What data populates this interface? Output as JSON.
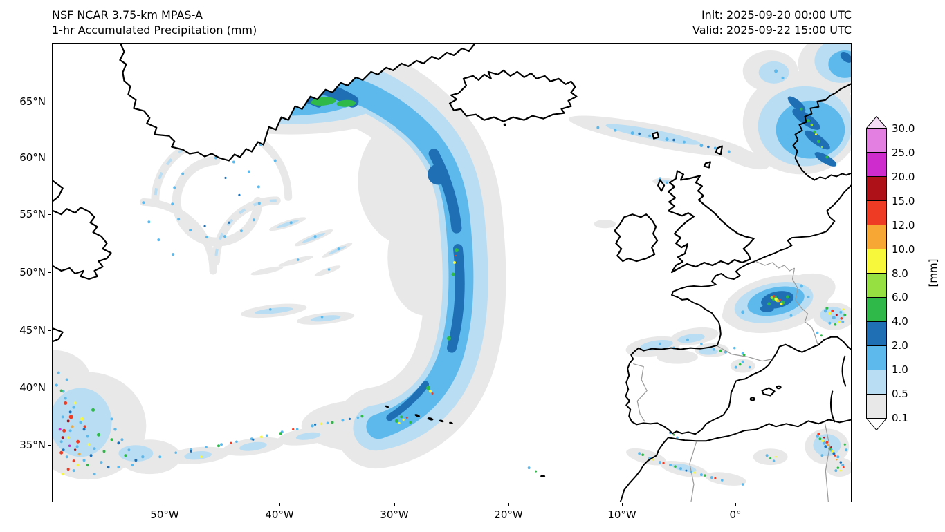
{
  "header": {
    "title_line1": "NSF NCAR 3.75-km MPAS-A",
    "title_line2": "1-hr Accumulated Precipitation (mm)",
    "init_time": "Init: 2025-09-20 00:00 UTC",
    "valid_time": "Valid: 2025-09-22 15:00 UTC"
  },
  "map": {
    "y_tick_labels": [
      "65°N",
      "60°N",
      "55°N",
      "50°N",
      "45°N",
      "40°N",
      "35°N"
    ],
    "x_tick_labels": [
      "50°W",
      "40°W",
      "30°W",
      "20°W",
      "10°W",
      "0°"
    ]
  },
  "colorbar": {
    "unit_label": "[mm]",
    "tick_labels_top_to_bottom": [
      "30.0",
      "25.0",
      "20.0",
      "15.0",
      "12.0",
      "10.0",
      "8.0",
      "6.0",
      "4.0",
      "2.0",
      "1.0",
      "0.5",
      "0.1"
    ],
    "segment_colors_top_to_bottom": [
      "#e47fe2",
      "#ce2ccd",
      "#ae1117",
      "#ee3b24",
      "#f7a733",
      "#f7f73b",
      "#97e042",
      "#2fb949",
      "#1e6fb4",
      "#5db9ec",
      "#b9ddf3",
      "#e8e8e8"
    ],
    "over_arrow_color": "#f3dcf4",
    "under_arrow_color": "#ffffff"
  }
}
